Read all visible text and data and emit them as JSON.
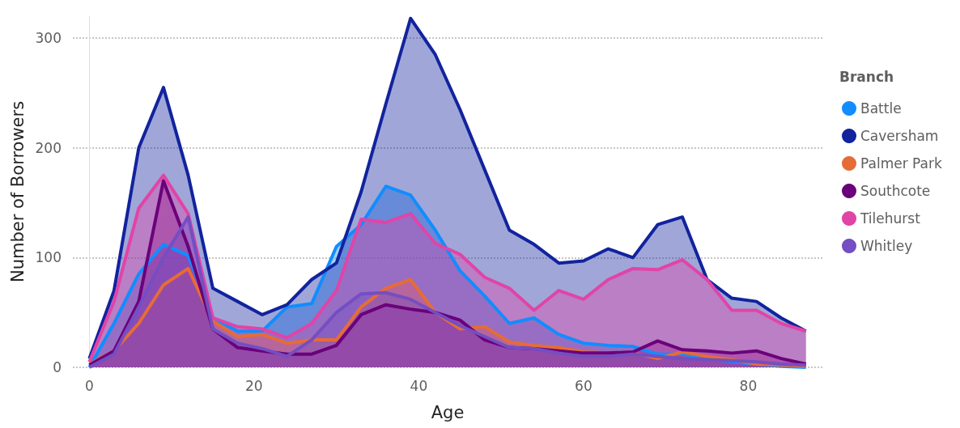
{
  "chart_data": {
    "type": "area",
    "xlabel": "Age",
    "ylabel": "Number of Borrowers",
    "legend_title": "Branch",
    "legend": "right",
    "grid": "y",
    "marker": "none",
    "x": [
      0,
      3,
      6,
      9,
      12,
      15,
      18,
      21,
      24,
      27,
      30,
      33,
      36,
      39,
      42,
      45,
      48,
      51,
      54,
      57,
      60,
      63,
      66,
      69,
      72,
      75,
      78,
      81,
      84,
      87
    ],
    "xlim": [
      -2,
      89
    ],
    "xticks": [
      0,
      20,
      40,
      60,
      80
    ],
    "ylim": [
      0,
      320
    ],
    "yticks": [
      0,
      100,
      200,
      300
    ],
    "series": [
      {
        "name": "Battle",
        "color": "#118dff",
        "values": [
          0,
          40,
          85,
          112,
          102,
          45,
          33,
          33,
          55,
          58,
          110,
          130,
          165,
          157,
          125,
          88,
          65,
          40,
          45,
          30,
          22,
          20,
          19,
          12,
          12,
          8,
          5,
          3,
          1,
          0
        ]
      },
      {
        "name": "Caversham",
        "color": "#12239e",
        "values": [
          8,
          70,
          200,
          255,
          175,
          72,
          60,
          48,
          57,
          80,
          95,
          160,
          240,
          318,
          285,
          235,
          180,
          125,
          112,
          95,
          97,
          108,
          100,
          130,
          137,
          80,
          63,
          60,
          45,
          33
        ]
      },
      {
        "name": "Palmer Park",
        "color": "#e66c37",
        "values": [
          3,
          15,
          40,
          75,
          90,
          42,
          28,
          30,
          22,
          25,
          25,
          55,
          72,
          80,
          50,
          35,
          37,
          23,
          20,
          18,
          14,
          13,
          13,
          8,
          14,
          10,
          7,
          3,
          2,
          1
        ]
      },
      {
        "name": "Southcote",
        "color": "#6b007b",
        "values": [
          2,
          15,
          60,
          170,
          110,
          35,
          18,
          15,
          12,
          12,
          20,
          48,
          57,
          53,
          50,
          43,
          25,
          18,
          17,
          15,
          13,
          13,
          14,
          24,
          16,
          15,
          13,
          15,
          8,
          3
        ]
      },
      {
        "name": "Tilehurst",
        "color": "#e044a7",
        "values": [
          5,
          60,
          145,
          175,
          140,
          45,
          37,
          35,
          27,
          40,
          70,
          135,
          132,
          140,
          113,
          103,
          82,
          72,
          52,
          70,
          62,
          80,
          90,
          89,
          98,
          80,
          52,
          52,
          40,
          33
        ]
      },
      {
        "name": "Whitley",
        "color": "#744ec2",
        "values": [
          0,
          12,
          55,
          100,
          137,
          35,
          22,
          17,
          10,
          25,
          50,
          67,
          68,
          62,
          50,
          38,
          28,
          18,
          17,
          13,
          10,
          10,
          12,
          10,
          8,
          7,
          6,
          5,
          3,
          2
        ]
      }
    ]
  }
}
